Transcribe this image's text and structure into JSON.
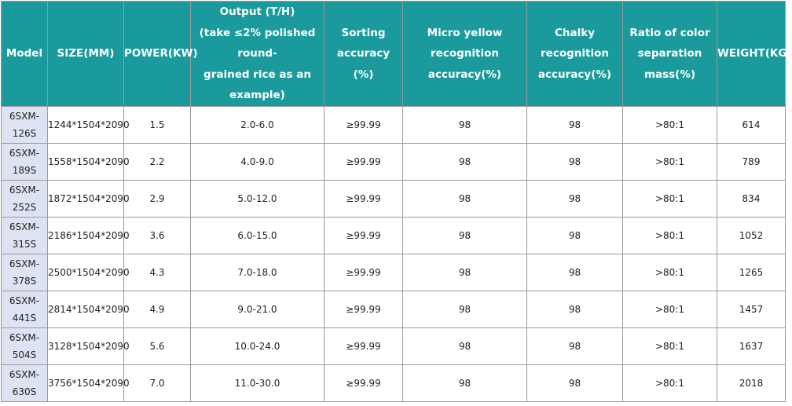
{
  "headers": {
    "model": "Model",
    "size": "SIZE(MM)",
    "power": "POWER(KW)",
    "output": [
      "Output (T/H)",
      "(take ≤2% polished",
      "round-",
      "grained rice as an",
      "example)"
    ],
    "sorting": [
      "Sorting",
      "accuracy",
      "(%)"
    ],
    "micro": [
      "Micro yellow",
      "recognition",
      "accuracy(%)"
    ],
    "chalky": [
      "Chalky",
      "recognition",
      "accuracy(%)"
    ],
    "ratio": [
      "Ratio of color",
      "separation",
      "mass(%)"
    ],
    "weight": "WEIGHT(KG)"
  },
  "rows": [
    {
      "model": [
        "6SXM-",
        "126S"
      ],
      "size": "1244*1504*2090",
      "power": "1.5",
      "output": "2.0-6.0",
      "sorting": "≥99.99",
      "micro": "98",
      "chalky": "98",
      "ratio": ">80:1",
      "weight": "614"
    },
    {
      "model": [
        "6SXM-",
        "189S"
      ],
      "size": "1558*1504*2090",
      "power": "2.2",
      "output": "4.0-9.0",
      "sorting": "≥99.99",
      "micro": "98",
      "chalky": "98",
      "ratio": ">80:1",
      "weight": "789"
    },
    {
      "model": [
        "6SXM-",
        "252S"
      ],
      "size": "1872*1504*2090",
      "power": "2.9",
      "output": "5.0-12.0",
      "sorting": "≥99.99",
      "micro": "98",
      "chalky": "98",
      "ratio": ">80:1",
      "weight": "834"
    },
    {
      "model": [
        "6SXM-",
        "315S"
      ],
      "size": "2186*1504*2090",
      "power": "3.6",
      "output": "6.0-15.0",
      "sorting": "≥99.99",
      "micro": "98",
      "chalky": "98",
      "ratio": ">80:1",
      "weight": "1052"
    },
    {
      "model": [
        "6SXM-",
        "378S"
      ],
      "size": "2500*1504*2090",
      "power": "4.3",
      "output": "7.0-18.0",
      "sorting": "≥99.99",
      "micro": "98",
      "chalky": "98",
      "ratio": ">80:1",
      "weight": "1265"
    },
    {
      "model": [
        "6SXM-",
        "441S"
      ],
      "size": "2814*1504*2090",
      "power": "4.9",
      "output": "9.0-21.0",
      "sorting": "≥99.99",
      "micro": "98",
      "chalky": "98",
      "ratio": ">80:1",
      "weight": "1457"
    },
    {
      "model": [
        "6SXM-",
        "504S"
      ],
      "size": "3128*1504*2090",
      "power": "5.6",
      "output": "10.0-24.0",
      "sorting": "≥99.99",
      "micro": "98",
      "chalky": "98",
      "ratio": ">80:1",
      "weight": "1637"
    },
    {
      "model": [
        "6SXM-",
        "630S"
      ],
      "size": "3756*1504*2090",
      "power": "7.0",
      "output": "11.0-30.0",
      "sorting": "≥99.99",
      "micro": "98",
      "chalky": "98",
      "ratio": ">80:1",
      "weight": "2018"
    }
  ]
}
